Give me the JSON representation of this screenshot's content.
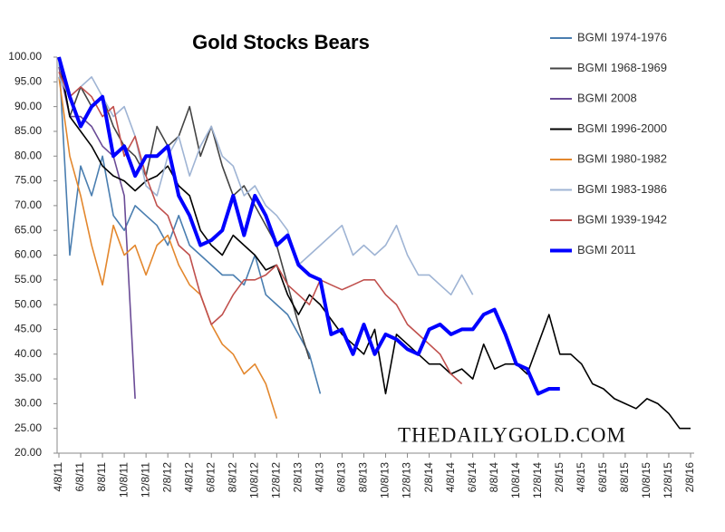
{
  "chart_data": {
    "type": "line",
    "title": "Gold Stocks Bears",
    "watermark": "THEDAILYGOLD.COM",
    "categories": [
      "4/8/11",
      null,
      "6/8/11",
      null,
      "8/8/11",
      null,
      "10/8/11",
      null,
      "12/8/11",
      null,
      "2/8/12",
      null,
      "4/8/12",
      null,
      "6/8/12",
      null,
      "8/8/12",
      null,
      "10/8/12",
      null,
      "12/8/12",
      null,
      "2/8/13",
      null,
      "4/8/13",
      null,
      "6/8/13",
      null,
      "8/8/13",
      null,
      "10/8/13",
      null,
      "12/8/13",
      null,
      "2/8/14",
      null,
      "4/8/14",
      null,
      "6/8/14",
      null,
      "8/8/14",
      null,
      "10/8/14",
      null,
      "12/8/14",
      null,
      "2/8/15",
      null,
      "4/8/15",
      null,
      "6/8/15",
      null,
      "8/8/15",
      null,
      "10/8/15",
      null,
      "12/8/15",
      null,
      "2/8/16"
    ],
    "ylim": [
      20,
      100
    ],
    "yticks": [
      {
        "value": 100,
        "label": "100.00"
      },
      {
        "value": 95,
        "label": "95.00"
      },
      {
        "value": 90,
        "label": "90.00"
      },
      {
        "value": 85,
        "label": "85.00"
      },
      {
        "value": 80,
        "label": "80.00"
      },
      {
        "value": 75,
        "label": "75.00"
      },
      {
        "value": 70,
        "label": "70.00"
      },
      {
        "value": 65,
        "label": "65.00"
      },
      {
        "value": 60,
        "label": "60.00"
      },
      {
        "value": 55,
        "label": "55.00"
      },
      {
        "value": 50,
        "label": "50.00"
      },
      {
        "value": 45,
        "label": "45.00"
      },
      {
        "value": 40,
        "label": "40.00"
      },
      {
        "value": 35,
        "label": "35.00"
      },
      {
        "value": 30,
        "label": "30.00"
      },
      {
        "value": 25,
        "label": "25.00"
      },
      {
        "value": 20,
        "label": "20.00"
      }
    ],
    "grid": false,
    "legend": "right",
    "series": [
      {
        "name": "BGMI 1974-1976",
        "color": "#4a7eb0",
        "values": [
          100,
          60,
          78,
          72,
          80,
          68,
          65,
          70,
          68,
          66,
          62,
          68,
          62,
          60,
          58,
          56,
          56,
          54,
          60,
          52,
          50,
          48,
          44,
          40,
          32,
          null,
          null,
          null,
          null,
          null,
          null,
          null,
          null,
          null,
          null,
          null,
          null,
          null,
          null,
          null,
          null,
          null,
          null,
          null,
          null,
          null,
          null,
          null,
          null,
          null,
          null,
          null,
          null,
          null,
          null,
          null,
          null,
          null,
          null
        ]
      },
      {
        "name": "BGMI 1968-1969",
        "color": "#444444",
        "values": [
          100,
          88,
          94,
          90,
          92,
          86,
          82,
          80,
          76,
          86,
          82,
          84,
          90,
          80,
          86,
          78,
          72,
          74,
          70,
          66,
          62,
          54,
          46,
          39,
          null,
          null,
          null,
          null,
          null,
          null,
          null,
          null,
          null,
          null,
          null,
          null,
          null,
          null,
          null,
          null,
          null,
          null,
          null,
          null,
          null,
          null,
          null,
          null,
          null,
          null,
          null,
          null,
          null,
          null,
          null,
          null,
          null,
          null,
          null
        ]
      },
      {
        "name": "BGMI 2008",
        "color": "#6a4b96",
        "values": [
          98,
          88,
          88,
          86,
          82,
          80,
          72,
          31,
          null,
          null,
          null,
          null,
          null,
          null,
          null,
          null,
          null,
          null,
          null,
          null,
          null,
          null,
          null,
          null,
          null,
          null,
          null,
          null,
          null,
          null,
          null,
          null,
          null,
          null,
          null,
          null,
          null,
          null,
          null,
          null,
          null,
          null,
          null,
          null,
          null,
          null,
          null,
          null,
          null,
          null,
          null,
          null,
          null,
          null,
          null,
          null,
          null,
          null,
          null
        ]
      },
      {
        "name": "BGMI 1996-2000",
        "color": "#000000",
        "values": [
          100,
          88,
          85,
          82,
          78,
          76,
          75,
          73,
          75,
          76,
          78,
          74,
          72,
          65,
          62,
          60,
          64,
          62,
          60,
          57,
          58,
          52,
          48,
          52,
          50,
          47,
          44,
          42,
          40,
          45,
          32,
          44,
          42,
          40,
          38,
          38,
          36,
          37,
          35,
          42,
          37,
          38,
          38,
          36,
          42,
          48,
          40,
          40,
          38,
          34,
          33,
          31,
          30,
          29,
          31,
          30,
          28,
          25,
          25
        ]
      },
      {
        "name": "BGMI 1980-1982",
        "color": "#e3872d",
        "values": [
          96,
          80,
          72,
          62,
          54,
          66,
          60,
          62,
          56,
          62,
          64,
          58,
          54,
          52,
          46,
          42,
          40,
          36,
          38,
          34,
          27,
          null,
          null,
          null,
          null,
          null,
          null,
          null,
          null,
          null,
          null,
          null,
          null,
          null,
          null,
          null,
          null,
          null,
          null,
          null,
          null,
          null,
          null,
          null,
          null,
          null,
          null,
          null,
          null,
          null,
          null,
          null,
          null,
          null,
          null,
          null,
          null,
          null,
          null
        ]
      },
      {
        "name": "BGMI 1983-1986",
        "color": "#9fb4d4",
        "values": [
          96,
          92,
          94,
          96,
          92,
          88,
          90,
          84,
          74,
          72,
          80,
          84,
          76,
          82,
          86,
          80,
          78,
          72,
          74,
          70,
          68,
          65,
          58,
          60,
          62,
          64,
          66,
          60,
          62,
          60,
          62,
          66,
          60,
          56,
          56,
          54,
          52,
          56,
          52,
          null,
          null,
          null,
          null,
          null,
          null,
          null,
          null,
          null,
          null,
          null,
          null,
          null,
          null,
          null,
          null,
          null,
          null,
          null,
          null
        ]
      },
      {
        "name": "BGMI 1939-1942",
        "color": "#c0504d",
        "values": [
          97,
          92,
          94,
          92,
          88,
          90,
          80,
          84,
          76,
          70,
          68,
          62,
          60,
          52,
          46,
          48,
          52,
          55,
          55,
          56,
          58,
          54,
          52,
          50,
          55,
          54,
          53,
          54,
          55,
          55,
          52,
          50,
          46,
          44,
          42,
          40,
          36,
          34,
          null,
          null,
          null,
          null,
          null,
          null,
          null,
          null,
          null,
          null,
          null,
          null,
          null,
          null,
          null,
          null,
          null,
          null,
          null,
          null,
          null
        ]
      },
      {
        "name": "BGMI 2011",
        "color": "#0000ff",
        "values": [
          100,
          92,
          86,
          90,
          92,
          80,
          82,
          76,
          80,
          80,
          82,
          72,
          68,
          62,
          63,
          65,
          72,
          64,
          72,
          68,
          62,
          64,
          58,
          56,
          55,
          44,
          45,
          40,
          46,
          40,
          44,
          43,
          41,
          40,
          45,
          46,
          44,
          45,
          45,
          48,
          49,
          44,
          38,
          37,
          32,
          33,
          33,
          null,
          null,
          null,
          null,
          null,
          null,
          null,
          null,
          null,
          null,
          null,
          null
        ]
      }
    ]
  }
}
